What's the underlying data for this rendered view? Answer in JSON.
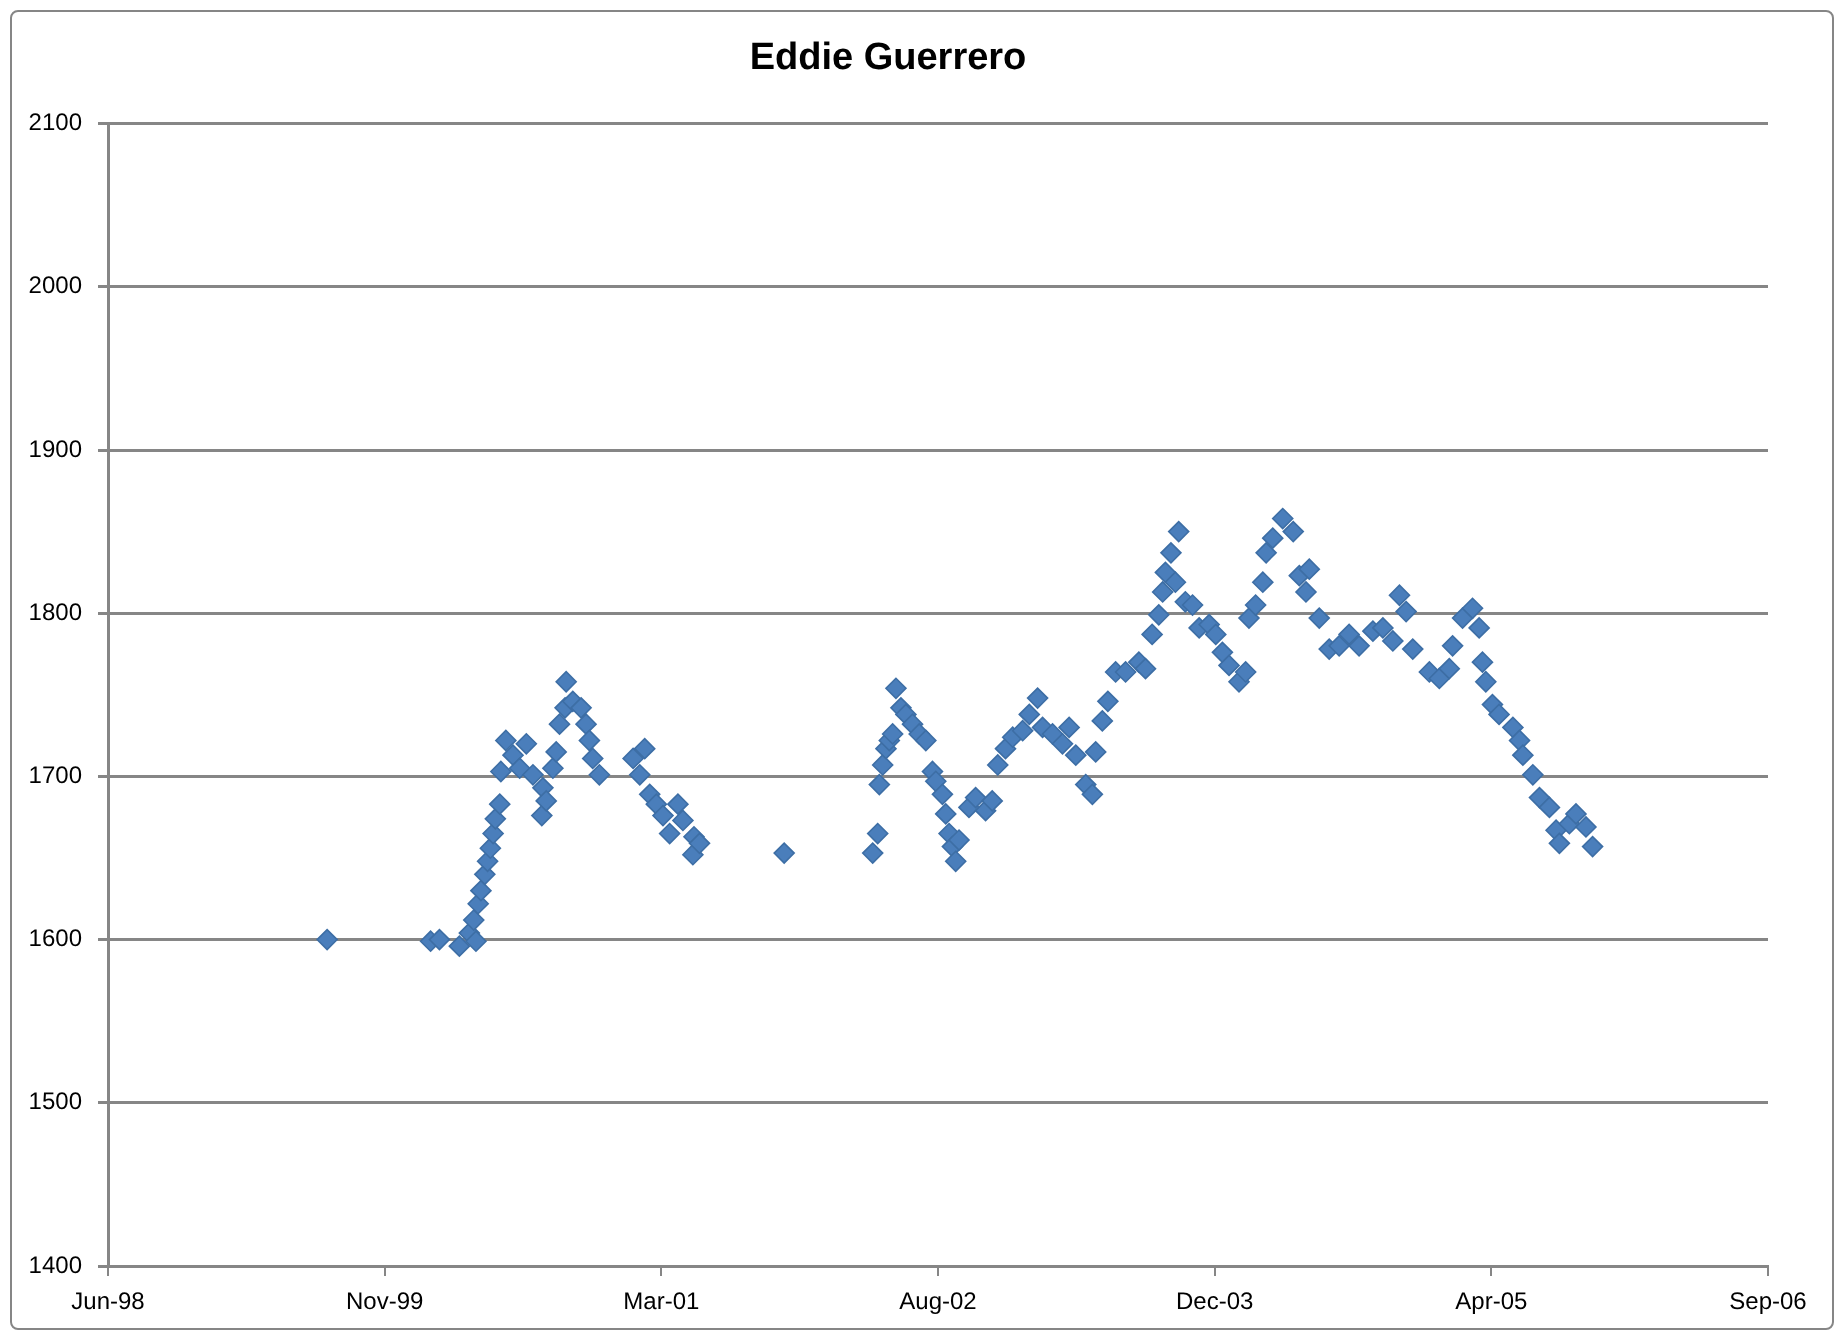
{
  "chart_data": {
    "type": "scatter",
    "title": "Eddie Guerrero",
    "color": "#4a7ebb",
    "marker": "diamond",
    "grid": "y",
    "xlim": [
      "1998-06-24",
      "2006-09-10"
    ],
    "xticks": [
      {
        "value": "1998-06-24",
        "label": "Jun-98"
      },
      {
        "value": "1999-11-06",
        "label": "Nov-99"
      },
      {
        "value": "2001-03-20",
        "label": "Mar-01"
      },
      {
        "value": "2002-08-02",
        "label": "Aug-02"
      },
      {
        "value": "2003-12-15",
        "label": "Dec-03"
      },
      {
        "value": "2005-04-28",
        "label": "Apr-05"
      },
      {
        "value": "2006-09-10",
        "label": "Sep-06"
      }
    ],
    "ylim": [
      1400,
      2100
    ],
    "yticks": [
      1400,
      1500,
      1600,
      1700,
      1800,
      1900,
      2000,
      2100
    ],
    "x": [
      "1999-07-25",
      "2000-01-28",
      "2000-02-13",
      "2000-03-20",
      "2000-04-07",
      "2000-04-15",
      "2000-04-19",
      "2000-04-23",
      "2000-04-28",
      "2000-05-05",
      "2000-05-10",
      "2000-05-15",
      "2000-05-20",
      "2000-05-24",
      "2000-06-01",
      "2000-06-03",
      "2000-06-12",
      "2000-06-25",
      "2000-07-07",
      "2000-07-19",
      "2000-07-31",
      "2000-08-16",
      "2000-08-18",
      "2000-08-24",
      "2000-09-05",
      "2000-09-11",
      "2000-09-17",
      "2000-09-27",
      "2000-09-29",
      "2000-10-11",
      "2000-10-26",
      "2000-11-04",
      "2000-11-10",
      "2000-11-16",
      "2000-11-28",
      "2001-01-28",
      "2001-02-09",
      "2001-02-18",
      "2001-02-27",
      "2001-03-11",
      "2001-03-23",
      "2001-04-04",
      "2001-04-19",
      "2001-04-28",
      "2001-05-16",
      "2001-05-18",
      "2001-05-28",
      "2001-10-28",
      "2002-04-06",
      "2002-04-15",
      "2002-04-18",
      "2002-04-24",
      "2002-04-30",
      "2002-05-06",
      "2002-05-12",
      "2002-05-18",
      "2002-05-27",
      "2002-06-05",
      "2002-06-17",
      "2002-06-29",
      "2002-07-11",
      "2002-07-23",
      "2002-07-29",
      "2002-08-10",
      "2002-08-16",
      "2002-08-22",
      "2002-08-28",
      "2002-09-03",
      "2002-09-09",
      "2002-09-27",
      "2002-10-09",
      "2002-10-27",
      "2002-11-08",
      "2002-11-18",
      "2002-12-02",
      "2002-12-15",
      "2003-01-02",
      "2003-01-14",
      "2003-01-29",
      "2003-02-07",
      "2003-02-25",
      "2003-03-15",
      "2003-03-27",
      "2003-04-08",
      "2003-04-26",
      "2003-05-08",
      "2003-05-14",
      "2003-05-26",
      "2003-06-05",
      "2003-06-19",
      "2003-07-07",
      "2003-07-31",
      "2003-08-12",
      "2003-08-24",
      "2003-09-05",
      "2003-09-12",
      "2003-09-17",
      "2003-09-27",
      "2003-10-05",
      "2003-10-11",
      "2003-10-23",
      "2003-11-05",
      "2003-11-17",
      "2003-12-05",
      "2003-12-17",
      "2003-12-29",
      "2004-01-10",
      "2004-01-28",
      "2004-02-09",
      "2004-02-15",
      "2004-02-27",
      "2004-03-11",
      "2004-03-17",
      "2004-03-29",
      "2004-04-16",
      "2004-05-05",
      "2004-05-16",
      "2004-05-28",
      "2004-06-03",
      "2004-06-21",
      "2004-07-09",
      "2004-07-27",
      "2004-08-14",
      "2004-09-01",
      "2004-09-26",
      "2004-10-14",
      "2004-11-01",
      "2004-11-13",
      "2004-11-25",
      "2004-12-07",
      "2005-01-06",
      "2005-01-24",
      "2005-02-11",
      "2005-02-17",
      "2005-03-07",
      "2005-03-25",
      "2005-04-06",
      "2005-04-12",
      "2005-04-18",
      "2005-04-30",
      "2005-05-12",
      "2005-06-06",
      "2005-06-18",
      "2005-06-24",
      "2005-07-12",
      "2005-07-24",
      "2005-08-11",
      "2005-08-23",
      "2005-08-29",
      "2005-09-16",
      "2005-09-28",
      "2005-10-16",
      "2005-10-28"
    ],
    "values": [
      1600,
      1599,
      1600,
      1596,
      1604,
      1612,
      1599,
      1622,
      1630,
      1640,
      1648,
      1656,
      1665,
      1674,
      1683,
      1703,
      1722,
      1713,
      1705,
      1720,
      1701,
      1676,
      1693,
      1685,
      1705,
      1715,
      1732,
      1742,
      1758,
      1746,
      1742,
      1732,
      1722,
      1711,
      1701,
      1711,
      1701,
      1717,
      1689,
      1683,
      1676,
      1665,
      1683,
      1673,
      1652,
      1663,
      1659,
      1653,
      1653,
      1665,
      1695,
      1707,
      1717,
      1722,
      1726,
      1754,
      1742,
      1738,
      1732,
      1726,
      1722,
      1703,
      1697,
      1689,
      1677,
      1665,
      1657,
      1648,
      1661,
      1681,
      1687,
      1679,
      1685,
      1707,
      1717,
      1724,
      1728,
      1738,
      1748,
      1730,
      1726,
      1720,
      1730,
      1713,
      1695,
      1689,
      1715,
      1734,
      1746,
      1764,
      1764,
      1770,
      1766,
      1787,
      1799,
      1813,
      1825,
      1837,
      1819,
      1850,
      1807,
      1805,
      1791,
      1793,
      1787,
      1776,
      1768,
      1758,
      1764,
      1797,
      1805,
      1819,
      1837,
      1846,
      1858,
      1850,
      1823,
      1813,
      1827,
      1797,
      1778,
      1780,
      1787,
      1780,
      1789,
      1791,
      1783,
      1811,
      1801,
      1778,
      1764,
      1760,
      1766,
      1780,
      1797,
      1803,
      1791,
      1770,
      1758,
      1744,
      1738,
      1730,
      1722,
      1713,
      1701,
      1687,
      1681,
      1667,
      1659,
      1671,
      1677,
      1669,
      1657
    ]
  }
}
